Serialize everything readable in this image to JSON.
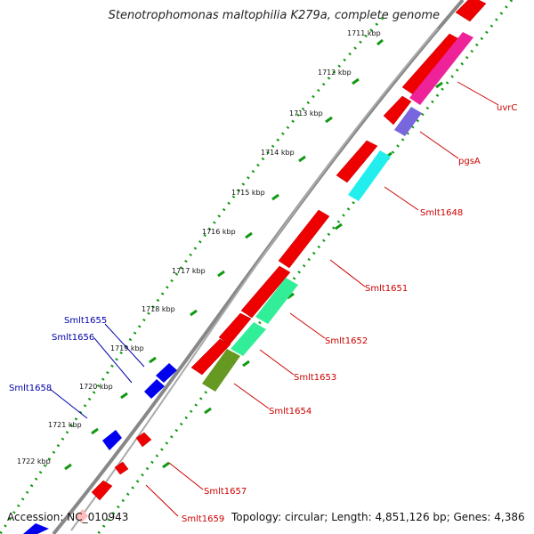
{
  "title": "Stenotrophomonas maltophilia K279a, complete genome",
  "footer": {
    "accession": "Accession: NC_010943",
    "summary": "Topology: circular; Length: 4,851,126 bp; Genes: 4,386"
  },
  "ticks": [
    "1711 kbp",
    "1712 kbp",
    "1713 kbp",
    "1714 kbp",
    "1715 kbp",
    "1716 kbp",
    "1717 kbp",
    "1718 kbp",
    "1719 kbp",
    "1720 kbp",
    "1721 kbp",
    "1722 kbp"
  ],
  "gene_labels": {
    "uvrC": "uvrC",
    "pgsA": "pgsA",
    "smlt1648": "Smlt1648",
    "smlt1651": "Smlt1651",
    "smlt1652": "Smlt1652",
    "smlt1653": "Smlt1653",
    "smlt1654": "Smlt1654",
    "smlt1655": "Smlt1655",
    "smlt1656": "Smlt1656",
    "smlt1657": "Smlt1657",
    "smlt1658": "Smlt1658",
    "smlt1659": "Smlt1659"
  },
  "colors": {
    "cds": "#ee0000",
    "reverse_gene": "#0000ee",
    "magenta_gene": "#ee2299",
    "purple_gene": "#7766dd",
    "cyan_gene": "#22eeee",
    "green_gene": "#33ee99",
    "olive_gene": "#669922",
    "backbone": "#777777",
    "ruler_dots": "#119911",
    "label_red": "#cc0000",
    "label_blue": "#0000aa"
  }
}
